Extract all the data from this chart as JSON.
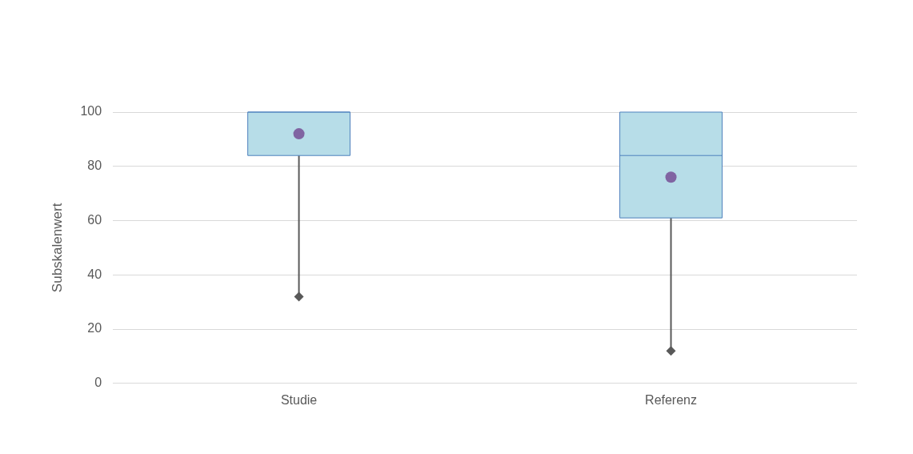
{
  "chart_data": {
    "type": "box",
    "ylabel": "Subskalenwert",
    "categories": [
      "Studie",
      "Referenz"
    ],
    "boxes": [
      {
        "low": 32,
        "q1": 84,
        "median": 100,
        "q3": 100,
        "high": 100,
        "mean": 92
      },
      {
        "low": 12,
        "q1": 61,
        "median": 84,
        "q3": 100,
        "high": 100,
        "mean": 76
      }
    ],
    "color": "#b7dde8",
    "ylim": [
      0,
      100
    ],
    "yticks": [
      0,
      20,
      40,
      60,
      80,
      100
    ],
    "series": [
      {
        "type": "scatter",
        "x": [
          "Studie",
          "Referenz"
        ],
        "values": [
          32,
          12
        ],
        "color": "#595959",
        "marker": "diamond"
      }
    ],
    "grid": "y",
    "legend": false
  }
}
